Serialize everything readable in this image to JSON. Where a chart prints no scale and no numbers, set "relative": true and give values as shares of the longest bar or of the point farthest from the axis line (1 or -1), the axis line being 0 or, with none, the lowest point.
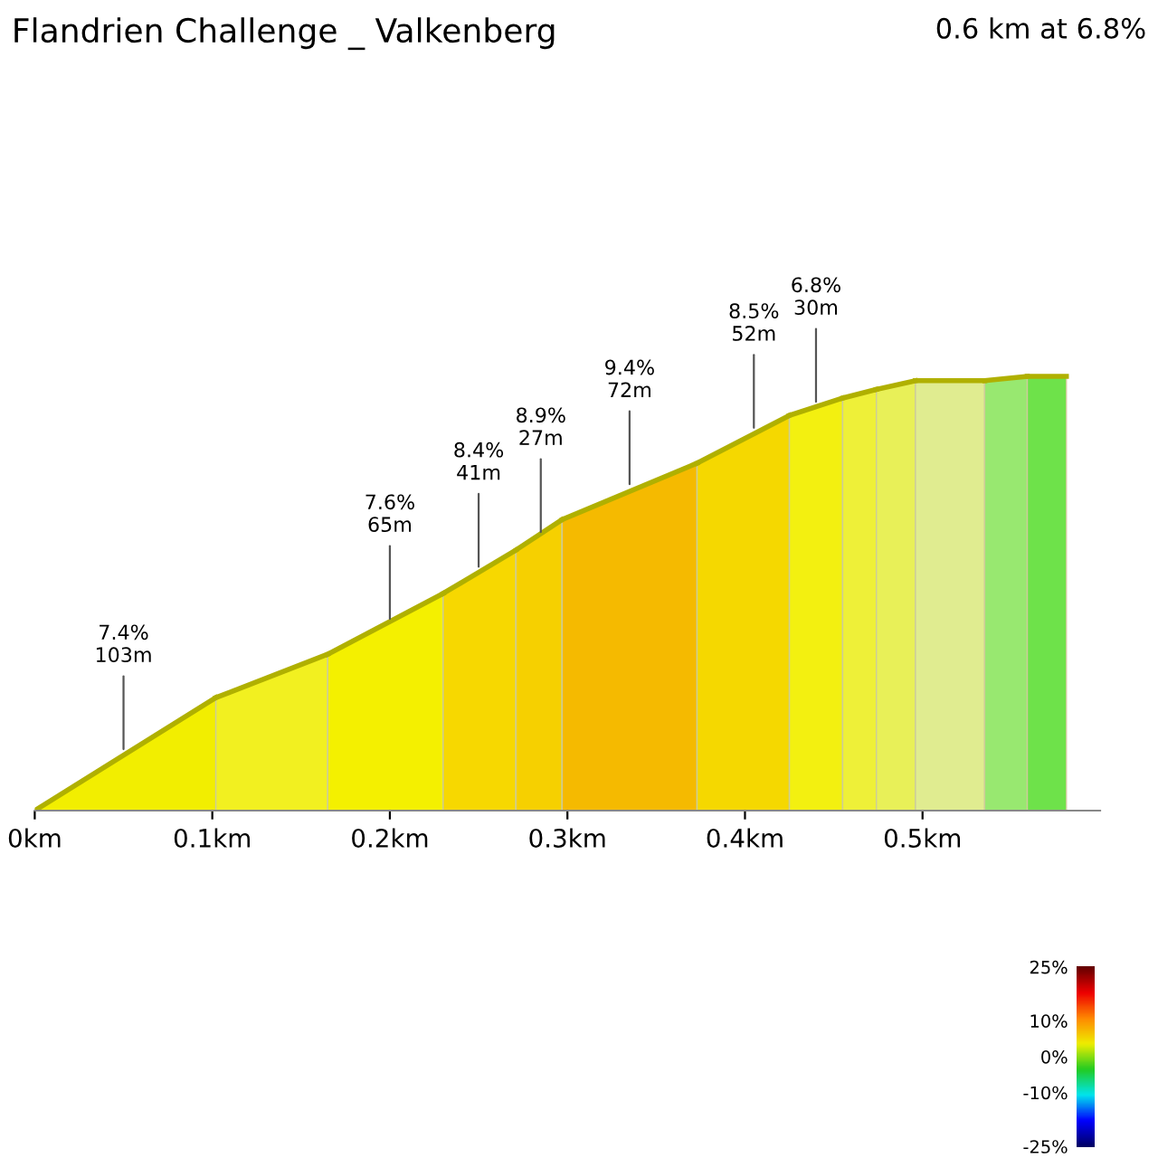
{
  "chart_data": {
    "type": "area",
    "title": "Flandrien Challenge _ Valkenberg",
    "subtitle": "0.6 km at 6.8%",
    "relative": true,
    "xlim": [
      0,
      0.6
    ],
    "xticks": [
      {
        "value": 0,
        "label": "0km"
      },
      {
        "value": 0.1,
        "label": "0.1km"
      },
      {
        "value": 0.2,
        "label": "0.2km"
      },
      {
        "value": 0.3,
        "label": "0.3km"
      },
      {
        "value": 0.4,
        "label": "0.4km"
      },
      {
        "value": 0.5,
        "label": "0.5km"
      }
    ],
    "series": [
      {
        "color": "#f2ee00",
        "x": [
          0,
          0.102
        ],
        "values": [
          0,
          0.26
        ]
      },
      {
        "color": "#f2f020",
        "x": [
          0.102,
          0.165
        ],
        "values": [
          0.26,
          0.36
        ]
      },
      {
        "color": "#f4f000",
        "x": [
          0.165,
          0.23
        ],
        "values": [
          0.36,
          0.5
        ]
      },
      {
        "color": "#f7d800",
        "x": [
          0.23,
          0.271
        ],
        "values": [
          0.5,
          0.6
        ]
      },
      {
        "color": "#f6d000",
        "x": [
          0.271,
          0.297
        ],
        "values": [
          0.6,
          0.67
        ]
      },
      {
        "color": "#f5ba00",
        "x": [
          0.297,
          0.373
        ],
        "values": [
          0.67,
          0.8
        ]
      },
      {
        "color": "#f5d800",
        "x": [
          0.373,
          0.425
        ],
        "values": [
          0.8,
          0.91
        ]
      },
      {
        "color": "#f3f010",
        "x": [
          0.425,
          0.455
        ],
        "values": [
          0.91,
          0.95
        ]
      },
      {
        "color": "#eef038",
        "x": [
          0.455,
          0.474
        ],
        "values": [
          0.95,
          0.97
        ]
      },
      {
        "color": "#e8f058",
        "x": [
          0.474,
          0.496
        ],
        "values": [
          0.97,
          0.99
        ]
      },
      {
        "color": "#e0ec90",
        "x": [
          0.496,
          0.535
        ],
        "values": [
          0.99,
          0.99
        ]
      },
      {
        "color": "#98e870",
        "x": [
          0.535,
          0.559
        ],
        "values": [
          0.99,
          1.0
        ]
      },
      {
        "color": "#6ee24a",
        "x": [
          0.559,
          0.581
        ],
        "values": [
          1.0,
          1.0
        ]
      }
    ],
    "annotations": [
      {
        "text": "7.4%\n103m",
        "x": 0.05,
        "y": 0.13
      },
      {
        "text": "7.6%\n65m",
        "x": 0.2,
        "y": 0.43
      },
      {
        "text": "8.4%\n41m",
        "x": 0.25,
        "y": 0.55
      },
      {
        "text": "8.9%\n27m",
        "x": 0.285,
        "y": 0.63
      },
      {
        "text": "9.4%\n72m",
        "x": 0.335,
        "y": 0.74
      },
      {
        "text": "8.5%\n52m",
        "x": 0.405,
        "y": 0.87
      },
      {
        "text": "6.8%\n30m",
        "x": 0.44,
        "y": 0.93
      }
    ],
    "clim": [
      -25,
      25
    ],
    "cticks": [
      {
        "value": 25,
        "label": "25%"
      },
      {
        "value": 10,
        "label": "10%"
      },
      {
        "value": 0,
        "label": "0%"
      },
      {
        "value": -10,
        "label": "-10%"
      },
      {
        "value": -25,
        "label": "-25%"
      }
    ],
    "grid": false,
    "legend": false
  }
}
